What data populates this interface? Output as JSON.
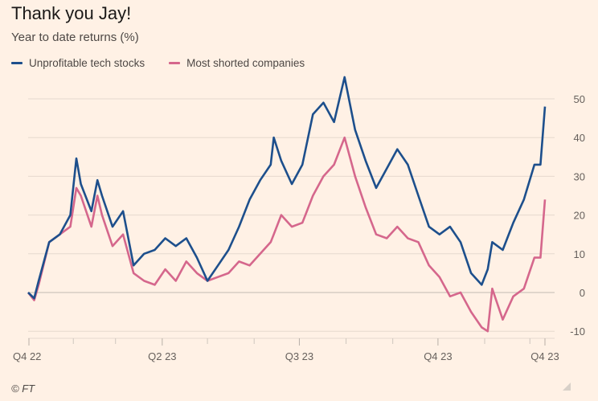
{
  "chart_data": {
    "type": "line",
    "title": "Thank you Jay!",
    "subtitle": "Year to date returns (%)",
    "source": "© FT",
    "ylim": [
      -12,
      57
    ],
    "y_ticks": [
      50,
      40,
      30,
      20,
      10,
      0,
      -10
    ],
    "y_axis_side": "right",
    "grid": true,
    "legend_placement": "top-left",
    "x_ticks": [
      {
        "label": "Q4 22",
        "date": "2023-01-01"
      },
      {
        "label": "Q2 23",
        "date": "2023-04-01"
      },
      {
        "label": "Q3 23",
        "date": "2023-07-01"
      },
      {
        "label": "Q4 23",
        "date": "2023-10-01"
      },
      {
        "label": "Q4 23",
        "date": "2023-12-11"
      }
    ],
    "x_minor_ticks": [
      "2023-02-01",
      "2023-03-01",
      "2023-05-01",
      "2023-06-01",
      "2023-08-01",
      "2023-09-01",
      "2023-11-01",
      "2023-12-01"
    ],
    "x_range": [
      "2023-01-01",
      "2023-12-12"
    ],
    "dates": [
      "2023-01-02",
      "2023-01-06",
      "2023-01-09",
      "2023-01-16",
      "2023-01-23",
      "2023-01-30",
      "2023-02-03",
      "2023-02-06",
      "2023-02-13",
      "2023-02-17",
      "2023-02-20",
      "2023-02-27",
      "2023-03-06",
      "2023-03-13",
      "2023-03-20",
      "2023-03-27",
      "2023-04-03",
      "2023-04-10",
      "2023-04-17",
      "2023-04-24",
      "2023-05-01",
      "2023-05-08",
      "2023-05-15",
      "2023-05-22",
      "2023-05-29",
      "2023-06-05",
      "2023-06-12",
      "2023-06-14",
      "2023-06-19",
      "2023-06-26",
      "2023-07-03",
      "2023-07-10",
      "2023-07-17",
      "2023-07-24",
      "2023-07-31",
      "2023-08-07",
      "2023-08-14",
      "2023-08-21",
      "2023-08-28",
      "2023-09-04",
      "2023-09-11",
      "2023-09-18",
      "2023-09-25",
      "2023-10-02",
      "2023-10-09",
      "2023-10-16",
      "2023-10-23",
      "2023-10-30",
      "2023-11-03",
      "2023-11-06",
      "2023-11-13",
      "2023-11-20",
      "2023-11-27",
      "2023-12-04",
      "2023-12-08",
      "2023-12-11"
    ],
    "series": [
      {
        "name": "Unprofitable tech stocks",
        "color": "#1D4F8C",
        "values": [
          0,
          -1.5,
          3,
          13,
          15,
          20,
          34.6,
          28,
          21,
          29,
          25,
          17,
          21,
          7,
          10,
          11,
          14,
          12,
          14,
          9,
          3,
          7,
          11,
          17,
          24,
          29,
          33,
          40,
          34,
          28,
          33,
          46,
          49,
          44,
          55.6,
          42,
          34,
          27,
          32,
          37,
          33,
          25,
          17,
          15,
          17,
          13,
          5,
          2,
          6,
          13,
          11,
          18,
          24,
          33,
          33,
          48
        ]
      },
      {
        "name": "Most shorted companies",
        "color": "#D5678C",
        "values": [
          0,
          -2,
          2,
          13,
          15,
          17,
          27,
          25,
          17,
          25,
          20,
          12,
          15,
          5,
          3,
          2,
          6,
          3,
          8,
          5,
          3,
          4,
          5,
          8,
          7,
          10,
          13,
          15,
          20,
          17,
          18,
          25,
          30,
          33,
          40,
          30,
          22,
          15,
          14,
          17,
          14,
          13,
          7,
          4,
          -1,
          0,
          -5,
          -9,
          -10,
          1,
          -7,
          -1,
          1,
          9,
          9,
          24
        ]
      }
    ]
  }
}
